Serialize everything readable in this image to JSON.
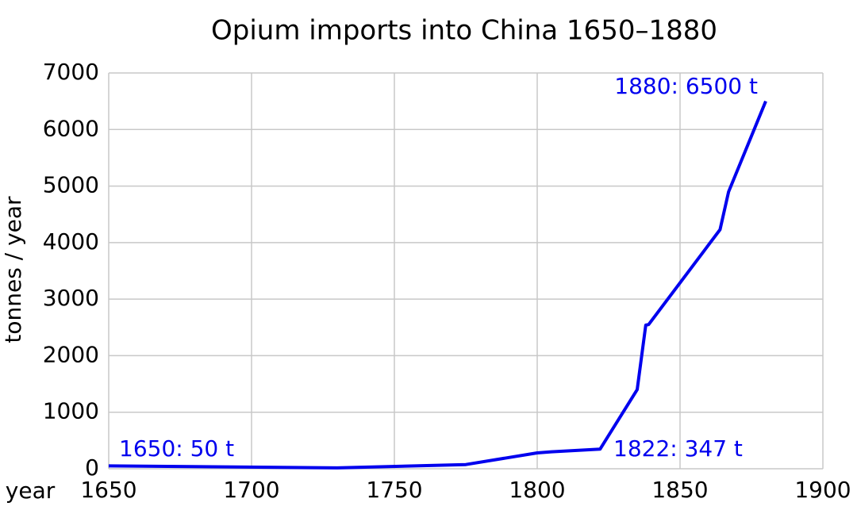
{
  "chart_data": {
    "type": "line",
    "title": "Opium imports into China 1650–1880",
    "x_label": "year",
    "y_label": "tonnes / year",
    "x": [
      1650,
      1730,
      1775,
      1800,
      1805,
      1822,
      1835,
      1838,
      1839,
      1864,
      1867,
      1880
    ],
    "series": [
      {
        "name": "opium imports",
        "color": "#0000ee",
        "values": [
          50,
          15,
          75,
          280,
          300,
          347,
          1400,
          2540,
          2550,
          4230,
          4900,
          6500
        ]
      }
    ],
    "annotations": [
      "1650: 50 t",
      "1822: 347 t",
      "1880: 6500 t"
    ],
    "xlim": [
      1650,
      1900
    ],
    "xticks": [
      1650,
      1700,
      1750,
      1800,
      1850,
      1900
    ],
    "ylim": [
      0,
      7000
    ],
    "yticks": [
      0,
      1000,
      2000,
      3000,
      4000,
      5000,
      6000,
      7000
    ],
    "grid": true
  }
}
